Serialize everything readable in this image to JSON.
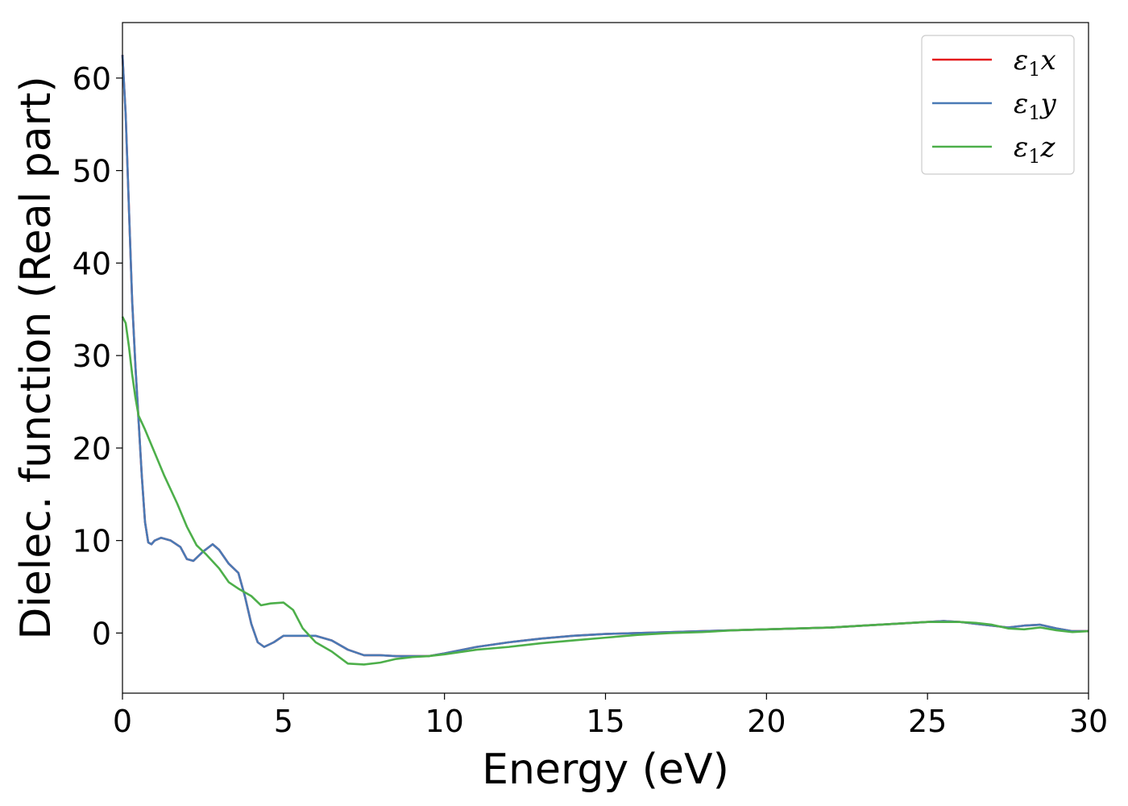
{
  "chart_data": {
    "type": "line",
    "title": "",
    "xlabel": "Energy (eV)",
    "ylabel": "Dielec. function (Real part)",
    "xlim": [
      0,
      30
    ],
    "ylim": [
      -6.5,
      66
    ],
    "xticks": [
      0,
      5,
      10,
      15,
      20,
      25,
      30
    ],
    "yticks": [
      0,
      10,
      20,
      30,
      40,
      50,
      60
    ],
    "grid": false,
    "legend_position": "top-right",
    "series": [
      {
        "name": "ε1x",
        "legend_base": "ε",
        "legend_sub": "1",
        "legend_var": "x",
        "color": "#e41a1c",
        "x": [
          0,
          0.1,
          0.2,
          0.3,
          0.4,
          0.5,
          0.6,
          0.7,
          0.8,
          0.9,
          1.0,
          1.2,
          1.5,
          1.8,
          2.0,
          2.2,
          2.5,
          2.8,
          3.0,
          3.3,
          3.6,
          3.8,
          4.0,
          4.2,
          4.4,
          4.7,
          5.0,
          5.5,
          6.0,
          6.5,
          7.0,
          7.5,
          8.0,
          8.5,
          9.0,
          9.5,
          10.0,
          11.0,
          12.0,
          13.0,
          14.0,
          15.0,
          16.0,
          17.0,
          18.0,
          19.0,
          20.0,
          21.0,
          22.0,
          23.0,
          24.0,
          25.0,
          25.5,
          26.0,
          26.5,
          27.0,
          27.5,
          28.0,
          28.5,
          29.0,
          29.5,
          30.0
        ],
        "y": [
          62.5,
          56,
          46,
          36,
          29,
          23,
          17,
          12,
          9.8,
          9.6,
          10.0,
          10.3,
          10.0,
          9.3,
          8.0,
          7.8,
          8.8,
          9.6,
          9.0,
          7.5,
          6.5,
          4.0,
          1.0,
          -1.0,
          -1.5,
          -1.0,
          -0.3,
          -0.3,
          -0.3,
          -0.8,
          -1.8,
          -2.4,
          -2.4,
          -2.5,
          -2.5,
          -2.5,
          -2.2,
          -1.5,
          -1.0,
          -0.6,
          -0.3,
          -0.1,
          0.0,
          0.1,
          0.2,
          0.3,
          0.4,
          0.5,
          0.6,
          0.8,
          1.0,
          1.2,
          1.3,
          1.2,
          1.0,
          0.8,
          0.6,
          0.8,
          0.9,
          0.5,
          0.2,
          0.2
        ]
      },
      {
        "name": "ε1y",
        "legend_base": "ε",
        "legend_sub": "1",
        "legend_var": "y",
        "color": "#4a7ab5",
        "x": [
          0,
          0.1,
          0.2,
          0.3,
          0.4,
          0.5,
          0.6,
          0.7,
          0.8,
          0.9,
          1.0,
          1.2,
          1.5,
          1.8,
          2.0,
          2.2,
          2.5,
          2.8,
          3.0,
          3.3,
          3.6,
          3.8,
          4.0,
          4.2,
          4.4,
          4.7,
          5.0,
          5.5,
          6.0,
          6.5,
          7.0,
          7.5,
          8.0,
          8.5,
          9.0,
          9.5,
          10.0,
          11.0,
          12.0,
          13.0,
          14.0,
          15.0,
          16.0,
          17.0,
          18.0,
          19.0,
          20.0,
          21.0,
          22.0,
          23.0,
          24.0,
          25.0,
          25.5,
          26.0,
          26.5,
          27.0,
          27.5,
          28.0,
          28.5,
          29.0,
          29.5,
          30.0
        ],
        "y": [
          62.5,
          56,
          46,
          36,
          29,
          23,
          17,
          12,
          9.8,
          9.6,
          10.0,
          10.3,
          10.0,
          9.3,
          8.0,
          7.8,
          8.8,
          9.6,
          9.0,
          7.5,
          6.5,
          4.0,
          1.0,
          -1.0,
          -1.5,
          -1.0,
          -0.3,
          -0.3,
          -0.3,
          -0.8,
          -1.8,
          -2.4,
          -2.4,
          -2.5,
          -2.5,
          -2.5,
          -2.2,
          -1.5,
          -1.0,
          -0.6,
          -0.3,
          -0.1,
          0.0,
          0.1,
          0.2,
          0.3,
          0.4,
          0.5,
          0.6,
          0.8,
          1.0,
          1.2,
          1.3,
          1.2,
          1.0,
          0.8,
          0.6,
          0.8,
          0.9,
          0.5,
          0.2,
          0.2
        ]
      },
      {
        "name": "ε1z",
        "legend_base": "ε",
        "legend_sub": "1",
        "legend_var": "z",
        "color": "#4daf4a",
        "x": [
          0,
          0.1,
          0.2,
          0.3,
          0.4,
          0.5,
          0.7,
          1.0,
          1.3,
          1.7,
          2.0,
          2.3,
          2.6,
          3.0,
          3.3,
          3.6,
          4.0,
          4.3,
          4.6,
          5.0,
          5.3,
          5.6,
          6.0,
          6.5,
          7.0,
          7.5,
          8.0,
          8.5,
          9.0,
          9.5,
          10.0,
          11.0,
          12.0,
          13.0,
          14.0,
          15.0,
          16.0,
          17.0,
          18.0,
          19.0,
          20.0,
          21.0,
          22.0,
          23.0,
          24.0,
          25.0,
          25.5,
          26.0,
          26.5,
          27.0,
          27.5,
          28.0,
          28.5,
          29.0,
          29.5,
          30.0
        ],
        "y": [
          34.2,
          33.5,
          31,
          28,
          25.5,
          23.5,
          22,
          19.5,
          17,
          14,
          11.5,
          9.5,
          8.5,
          7.0,
          5.5,
          4.8,
          4.0,
          3.0,
          3.2,
          3.3,
          2.5,
          0.5,
          -1.0,
          -2.0,
          -3.3,
          -3.4,
          -3.2,
          -2.8,
          -2.6,
          -2.5,
          -2.3,
          -1.8,
          -1.5,
          -1.1,
          -0.8,
          -0.5,
          -0.2,
          0.0,
          0.1,
          0.3,
          0.4,
          0.5,
          0.6,
          0.8,
          1.0,
          1.2,
          1.2,
          1.2,
          1.1,
          0.9,
          0.5,
          0.4,
          0.6,
          0.3,
          0.1,
          0.2
        ]
      }
    ]
  }
}
